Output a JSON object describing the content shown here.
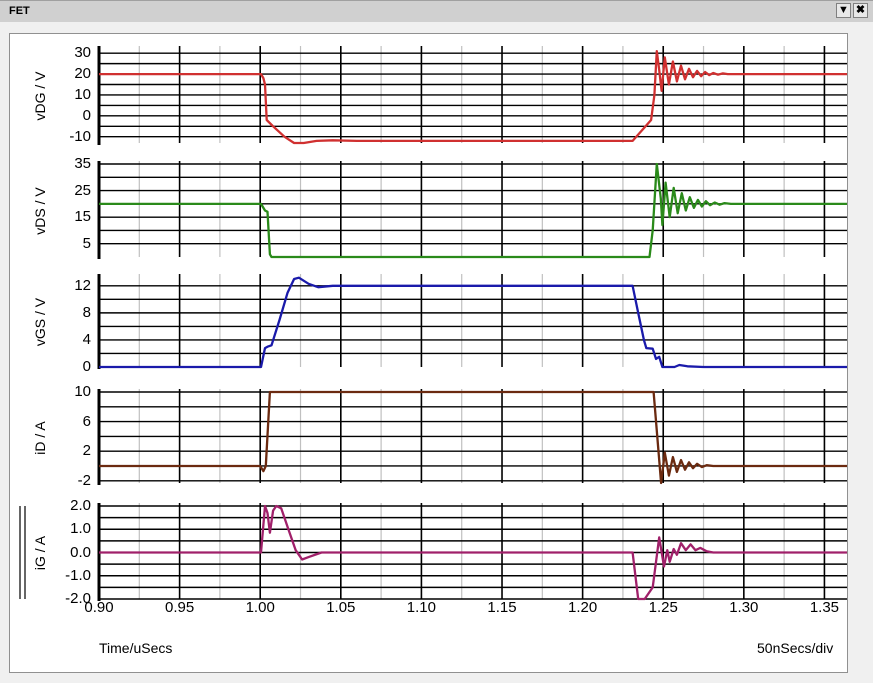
{
  "window": {
    "title": "FET",
    "menu_icon": "dropdown-triangle-icon",
    "close_icon": "close-x-icon"
  },
  "footer": {
    "xlabel": "Time/uSecs",
    "scale": "50nSecs/div"
  },
  "chart_data": [
    {
      "type": "line",
      "ylabel": "vDG / V",
      "ylim": [
        -13,
        32
      ],
      "yticks": [
        30,
        20,
        10,
        0,
        -10
      ],
      "ygrid": [
        30,
        25,
        20,
        15,
        10,
        5,
        0,
        -5,
        -10
      ],
      "color": "#d03030",
      "xlim": [
        0.9,
        1.364
      ],
      "xticks": [
        "0.90",
        "0.95",
        "1.00",
        "1.05",
        "1.10",
        "1.15",
        "1.20",
        "1.25",
        "1.30",
        "1.35"
      ],
      "points": [
        [
          0.9,
          20
        ],
        [
          1.0005,
          20
        ],
        [
          1.002,
          18
        ],
        [
          1.003,
          15
        ],
        [
          1.004,
          -2
        ],
        [
          1.008,
          -5
        ],
        [
          1.015,
          -10
        ],
        [
          1.021,
          -13
        ],
        [
          1.027,
          -13
        ],
        [
          1.035,
          -12
        ],
        [
          1.045,
          -11.7
        ],
        [
          1.06,
          -12
        ],
        [
          1.231,
          -12
        ],
        [
          1.2425,
          -2
        ],
        [
          1.2445,
          10
        ],
        [
          1.246,
          31
        ],
        [
          1.2475,
          22
        ],
        [
          1.249,
          12
        ],
        [
          1.251,
          28
        ],
        [
          1.2535,
          15
        ],
        [
          1.256,
          26
        ],
        [
          1.2585,
          16.5
        ],
        [
          1.261,
          24
        ],
        [
          1.2635,
          17.5
        ],
        [
          1.266,
          22.5
        ],
        [
          1.2685,
          18.5
        ],
        [
          1.271,
          21.5
        ],
        [
          1.2735,
          19
        ],
        [
          1.276,
          21
        ],
        [
          1.2785,
          19.5
        ],
        [
          1.281,
          20.5
        ],
        [
          1.284,
          19.7
        ],
        [
          1.287,
          20.3
        ],
        [
          1.29,
          20
        ],
        [
          1.364,
          20
        ]
      ]
    },
    {
      "type": "line",
      "ylabel": "vDS / V",
      "ylim": [
        0,
        35
      ],
      "yticks": [
        35,
        25,
        15,
        5
      ],
      "ygrid": [
        35,
        30,
        25,
        20,
        15,
        10,
        5
      ],
      "color": "#2a8a1a",
      "xlim": [
        0.9,
        1.364
      ],
      "points": [
        [
          0.9,
          20
        ],
        [
          1.0005,
          20
        ],
        [
          1.003,
          17.5
        ],
        [
          1.0045,
          17
        ],
        [
          1.006,
          1
        ],
        [
          1.007,
          0
        ],
        [
          1.2415,
          0
        ],
        [
          1.2435,
          10
        ],
        [
          1.246,
          35
        ],
        [
          1.2485,
          22
        ],
        [
          1.2495,
          12
        ],
        [
          1.2515,
          28
        ],
        [
          1.254,
          15
        ],
        [
          1.2565,
          26
        ],
        [
          1.259,
          16.5
        ],
        [
          1.2615,
          24
        ],
        [
          1.264,
          17.5
        ],
        [
          1.2665,
          22.5
        ],
        [
          1.269,
          18.5
        ],
        [
          1.2715,
          21.5
        ],
        [
          1.274,
          19
        ],
        [
          1.2765,
          21
        ],
        [
          1.279,
          19.5
        ],
        [
          1.282,
          20.5
        ],
        [
          1.285,
          19.7
        ],
        [
          1.288,
          20.3
        ],
        [
          1.292,
          20
        ],
        [
          1.364,
          20
        ]
      ]
    },
    {
      "type": "line",
      "ylabel": "vGS / V",
      "ylim": [
        0,
        13.3
      ],
      "yticks": [
        12,
        8,
        4,
        0
      ],
      "ygrid": [
        12,
        10,
        8,
        6,
        4,
        2
      ],
      "color": "#1a1aaa",
      "xlim": [
        0.9,
        1.364
      ],
      "points": [
        [
          0.9,
          0
        ],
        [
          1.0005,
          0
        ],
        [
          1.003,
          2.8
        ],
        [
          1.0045,
          3
        ],
        [
          1.007,
          3.2
        ],
        [
          1.012,
          7
        ],
        [
          1.017,
          11
        ],
        [
          1.021,
          13
        ],
        [
          1.024,
          13.2
        ],
        [
          1.03,
          12.3
        ],
        [
          1.036,
          11.8
        ],
        [
          1.045,
          12
        ],
        [
          1.231,
          12
        ],
        [
          1.2345,
          8
        ],
        [
          1.238,
          4
        ],
        [
          1.2395,
          2.8
        ],
        [
          1.2435,
          2.7
        ],
        [
          1.2455,
          1.2
        ],
        [
          1.2475,
          1.5
        ],
        [
          1.2495,
          0
        ],
        [
          1.2525,
          -0.6
        ],
        [
          1.2545,
          -0.2
        ],
        [
          1.257,
          -0.4
        ],
        [
          1.26,
          0.3
        ],
        [
          1.265,
          0.1
        ],
        [
          1.275,
          0
        ],
        [
          1.364,
          0
        ]
      ]
    },
    {
      "type": "line",
      "ylabel": "iD / A",
      "ylim": [
        -2.3,
        10
      ],
      "yticks": [
        10,
        6,
        2,
        -2
      ],
      "ygrid": [
        10,
        8,
        6,
        4,
        2,
        0,
        -2
      ],
      "color": "#6b2a10",
      "xlim": [
        0.9,
        1.364
      ],
      "points": [
        [
          0.9,
          0
        ],
        [
          1.0,
          0
        ],
        [
          1.002,
          -0.7
        ],
        [
          1.0035,
          0
        ],
        [
          1.006,
          10
        ],
        [
          1.244,
          10
        ],
        [
          1.2487,
          -2.4
        ],
        [
          1.251,
          1.8
        ],
        [
          1.2535,
          -1.3
        ],
        [
          1.256,
          1.2
        ],
        [
          1.2585,
          -0.8
        ],
        [
          1.261,
          0.8
        ],
        [
          1.2635,
          -0.5
        ],
        [
          1.266,
          0.5
        ],
        [
          1.2685,
          -0.3
        ],
        [
          1.271,
          0.3
        ],
        [
          1.274,
          -0.15
        ],
        [
          1.277,
          0.1
        ],
        [
          1.281,
          0
        ],
        [
          1.364,
          0
        ]
      ]
    },
    {
      "type": "line",
      "ylabel": "iG / A",
      "ylim": [
        -2.0,
        2.0
      ],
      "yticks": [
        "2.0",
        "1.0",
        "0.0",
        "-1.0",
        "-2.0"
      ],
      "ygrid": [
        2,
        1.5,
        1,
        0.5,
        0,
        -0.5,
        -1,
        -1.5
      ],
      "color": "#a0206a",
      "xlim": [
        0.9,
        1.364
      ],
      "points": [
        [
          0.9,
          0
        ],
        [
          1.0005,
          0
        ],
        [
          1.003,
          2
        ],
        [
          1.0045,
          1.7
        ],
        [
          1.006,
          0.85
        ],
        [
          1.008,
          1.8
        ],
        [
          1.01,
          2
        ],
        [
          1.013,
          1.9
        ],
        [
          1.018,
          0.9
        ],
        [
          1.022,
          0.1
        ],
        [
          1.026,
          -0.3
        ],
        [
          1.03,
          -0.2
        ],
        [
          1.038,
          0
        ],
        [
          1.05,
          0
        ],
        [
          1.231,
          0
        ],
        [
          1.2345,
          -2.0
        ],
        [
          1.2385,
          -2.0
        ],
        [
          1.2435,
          -1.5
        ],
        [
          1.2475,
          0.65
        ],
        [
          1.2505,
          -0.6
        ],
        [
          1.2525,
          0.1
        ],
        [
          1.254,
          -0.4
        ],
        [
          1.2565,
          0.15
        ],
        [
          1.2585,
          -0.1
        ],
        [
          1.261,
          0.4
        ],
        [
          1.264,
          0.1
        ],
        [
          1.267,
          0.35
        ],
        [
          1.27,
          0.1
        ],
        [
          1.273,
          0.2
        ],
        [
          1.277,
          0.05
        ],
        [
          1.281,
          0
        ],
        [
          1.364,
          0
        ]
      ]
    }
  ]
}
